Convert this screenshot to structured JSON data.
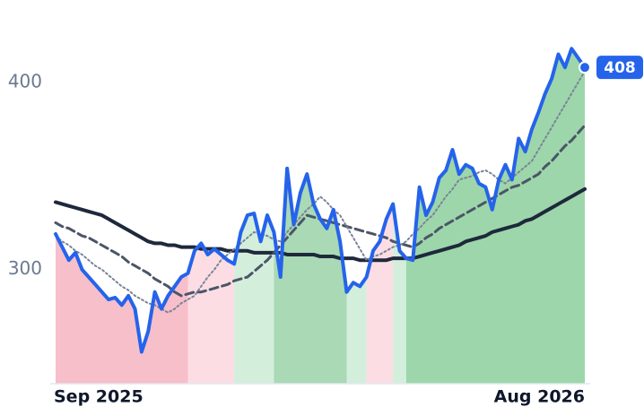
{
  "chart_data": {
    "type": "line",
    "xlim": [
      0,
      80
    ],
    "xticks": [
      {
        "value": 0,
        "label": "Sep 2025"
      },
      {
        "value": 80,
        "label": "Aug 2026"
      }
    ],
    "ylim": [
      239,
      444
    ],
    "yticks": [
      300,
      400
    ],
    "series": [
      {
        "color": "#2563eb",
        "width": 4,
        "dash": "solid",
        "values": [
          319,
          312,
          305,
          309,
          300,
          296,
          292,
          288,
          284,
          285,
          281,
          286,
          279,
          256,
          267,
          288,
          279,
          286,
          291,
          296,
          298,
          310,
          314,
          308,
          311,
          308,
          305,
          303,
          320,
          329,
          330,
          315,
          329,
          320,
          296,
          354,
          324,
          341,
          351,
          335,
          327,
          322,
          332,
          315,
          288,
          293,
          291,
          296,
          310,
          315,
          327,
          335,
          310,
          306,
          305,
          344,
          329,
          336,
          349,
          353,
          364,
          351,
          356,
          354,
          346,
          344,
          332,
          348,
          356,
          348,
          370,
          363,
          375,
          384,
          394,
          402,
          415,
          408,
          418,
          413,
          408
        ]
      },
      {
        "color": "#7a8499",
        "width": 2,
        "dash": "dotted",
        "values": [
          318,
          315,
          313,
          310,
          308,
          305,
          302,
          300,
          297,
          294,
          291,
          289,
          286,
          284,
          282,
          281,
          279,
          277,
          279,
          282,
          284,
          286,
          291,
          296,
          300,
          305,
          308,
          311,
          314,
          317,
          320,
          319,
          318,
          316,
          315,
          320,
          324,
          328,
          332,
          335,
          339,
          336,
          332,
          329,
          323,
          317,
          311,
          305,
          307,
          308,
          310,
          312,
          313,
          315,
          319,
          322,
          326,
          329,
          334,
          339,
          343,
          348,
          349,
          350,
          352,
          353,
          351,
          348,
          346,
          349,
          352,
          355,
          358,
          364,
          370,
          376,
          382,
          388,
          394,
          400,
          406
        ]
      },
      {
        "color": "#4b5568",
        "width": 3,
        "dash": "dashed",
        "values": [
          325,
          323,
          322,
          320,
          318,
          317,
          315,
          313,
          311,
          309,
          307,
          304,
          302,
          300,
          298,
          295,
          293,
          291,
          288,
          286,
          287,
          288,
          288,
          289,
          290,
          291,
          292,
          294,
          295,
          296,
          299,
          302,
          305,
          309,
          313,
          317,
          321,
          325,
          329,
          328,
          327,
          326,
          325,
          324,
          323,
          322,
          321,
          320,
          319,
          318,
          317,
          315,
          314,
          313,
          312,
          314,
          317,
          319,
          322,
          324,
          326,
          328,
          330,
          332,
          334,
          336,
          338,
          340,
          342,
          344,
          345,
          347,
          349,
          351,
          355,
          358,
          362,
          366,
          369,
          373,
          377
        ]
      },
      {
        "color": "#1e293b",
        "width": 4,
        "dash": "solid",
        "values": [
          336,
          335,
          334,
          333,
          332,
          331,
          330,
          329,
          327,
          325,
          323,
          321,
          319,
          317,
          315,
          314,
          314,
          313,
          313,
          312,
          312,
          312,
          311,
          311,
          311,
          311,
          310,
          310,
          310,
          310,
          309,
          309,
          309,
          309,
          309,
          308,
          308,
          308,
          308,
          308,
          307,
          307,
          307,
          306,
          306,
          306,
          305,
          305,
          305,
          305,
          305,
          306,
          306,
          306,
          306,
          307,
          308,
          309,
          310,
          311,
          312,
          313,
          315,
          316,
          317,
          318,
          320,
          321,
          322,
          323,
          324,
          326,
          327,
          329,
          331,
          333,
          335,
          337,
          339,
          341,
          343
        ]
      }
    ],
    "regions": [
      {
        "start": 0,
        "end": 20,
        "color": "#f7bfca"
      },
      {
        "start": 20,
        "end": 27,
        "color": "#fcdde3"
      },
      {
        "start": 27,
        "end": 33,
        "color": "#d4eedc"
      },
      {
        "start": 33,
        "end": 44,
        "color": "#a9d9b5"
      },
      {
        "start": 44,
        "end": 47,
        "color": "#d4eedc"
      },
      {
        "start": 47,
        "end": 51,
        "color": "#fcdde3"
      },
      {
        "start": 51,
        "end": 53,
        "color": "#d4eedc"
      },
      {
        "start": 53,
        "end": 80,
        "color": "#9dd6aa"
      }
    ],
    "label_color": "#2563eb"
  }
}
